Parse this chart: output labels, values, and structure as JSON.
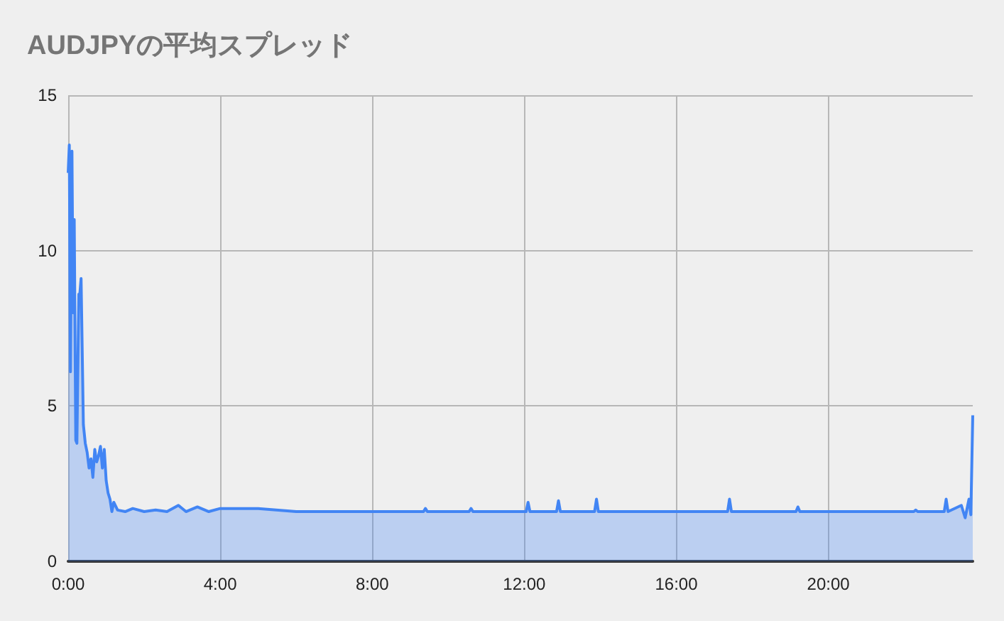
{
  "chart_data": {
    "type": "area",
    "title": "AUDJPYの平均スプレッド",
    "x": [
      0,
      0.03,
      0.06,
      0.1,
      0.13,
      0.16,
      0.2,
      0.23,
      0.28,
      0.3,
      0.34,
      0.4,
      0.45,
      0.5,
      0.55,
      0.6,
      0.65,
      0.7,
      0.75,
      0.8,
      0.85,
      0.9,
      0.95,
      1.0,
      1.05,
      1.1,
      1.15,
      1.2,
      1.3,
      1.5,
      1.7,
      2.0,
      2.3,
      2.6,
      2.9,
      3.1,
      3.4,
      3.7,
      4.0,
      5.0,
      6.0,
      7.0,
      8.0,
      9.0,
      9.35,
      9.4,
      9.45,
      10.0,
      10.55,
      10.6,
      10.65,
      11.0,
      12.0,
      12.05,
      12.1,
      12.15,
      12.85,
      12.9,
      12.95,
      13.85,
      13.9,
      13.95,
      15.0,
      16.0,
      17.35,
      17.4,
      17.45,
      18.0,
      19.0,
      19.15,
      19.2,
      19.25,
      20.0,
      21.0,
      22.25,
      22.3,
      22.35,
      23.05,
      23.1,
      23.15,
      23.5,
      23.6,
      23.7,
      23.75,
      23.8
    ],
    "series": [
      {
        "color": "#4285f4",
        "values": [
          12.5,
          13.4,
          6.1,
          13.2,
          8,
          11,
          3.9,
          3.8,
          8.6,
          8.5,
          9.1,
          4.4,
          3.8,
          3.5,
          3.0,
          3.3,
          2.7,
          3.6,
          3.2,
          3.4,
          3.7,
          3.0,
          3.6,
          2.6,
          2.2,
          2.0,
          1.6,
          1.9,
          1.65,
          1.6,
          1.7,
          1.6,
          1.65,
          1.6,
          1.8,
          1.6,
          1.75,
          1.6,
          1.7,
          1.7,
          1.6,
          1.6,
          1.6,
          1.6,
          1.6,
          1.7,
          1.6,
          1.6,
          1.6,
          1.7,
          1.6,
          1.6,
          1.6,
          1.6,
          1.9,
          1.6,
          1.6,
          1.95,
          1.6,
          1.6,
          2.0,
          1.6,
          1.6,
          1.6,
          1.6,
          2.0,
          1.6,
          1.6,
          1.6,
          1.6,
          1.75,
          1.6,
          1.6,
          1.6,
          1.6,
          1.65,
          1.6,
          1.6,
          2.0,
          1.6,
          1.8,
          1.4,
          2.0,
          1.5,
          4.7
        ]
      }
    ],
    "xlim": [
      0,
      23.8
    ],
    "xticks": [
      {
        "value": 0,
        "label": "0:00"
      },
      {
        "value": 4,
        "label": "4:00"
      },
      {
        "value": 8,
        "label": "8:00"
      },
      {
        "value": 12,
        "label": "12:00"
      },
      {
        "value": 16,
        "label": "16:00"
      },
      {
        "value": 20,
        "label": "20:00"
      }
    ],
    "ylim": [
      0,
      15
    ],
    "yticks": [
      0,
      5,
      10,
      15
    ],
    "grid": true
  }
}
